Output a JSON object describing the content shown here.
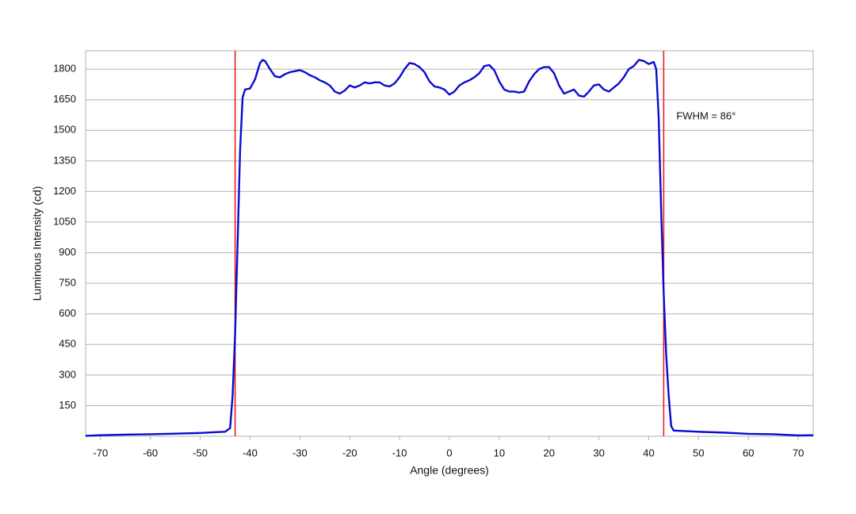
{
  "chart_data": {
    "type": "line",
    "x_label": "Angle (degrees)",
    "y_label": "Luminous Intensity (cd)",
    "annotation": "FWHM = 86°",
    "x": [
      -73,
      -70,
      -65,
      -60,
      -55,
      -50,
      -47,
      -45,
      -44,
      -43.5,
      -43,
      -42.5,
      -42,
      -41.5,
      -41,
      -40,
      -39,
      -38,
      -37.5,
      -37,
      -36,
      -35,
      -34,
      -33,
      -32,
      -31,
      -30,
      -29,
      -28,
      -27,
      -26,
      -25,
      -24,
      -23,
      -22,
      -21,
      -20,
      -19,
      -18,
      -17,
      -16,
      -15,
      -14,
      -13,
      -12,
      -11,
      -10,
      -9,
      -8,
      -7,
      -6,
      -5,
      -4,
      -3,
      -2,
      -1,
      0,
      1,
      2,
      3,
      4,
      5,
      6,
      7,
      8,
      9,
      10,
      11,
      12,
      13,
      14,
      15,
      16,
      17,
      18,
      19,
      20,
      21,
      22,
      23,
      24,
      25,
      26,
      27,
      28,
      29,
      30,
      31,
      32,
      33,
      34,
      35,
      36,
      37,
      38,
      39,
      40,
      41,
      41.5,
      42,
      42.5,
      43,
      43.5,
      44,
      44.5,
      45,
      50,
      55,
      60,
      65,
      70,
      73
    ],
    "series": [
      {
        "color": "#0a0ad0",
        "values": [
          2,
          5,
          8,
          10,
          13,
          16,
          20,
          22,
          40,
          200,
          500,
          950,
          1400,
          1660,
          1700,
          1705,
          1750,
          1830,
          1845,
          1840,
          1800,
          1765,
          1760,
          1775,
          1785,
          1790,
          1795,
          1785,
          1770,
          1760,
          1745,
          1735,
          1720,
          1690,
          1680,
          1695,
          1720,
          1710,
          1720,
          1735,
          1730,
          1735,
          1735,
          1720,
          1715,
          1730,
          1760,
          1800,
          1830,
          1825,
          1810,
          1785,
          1740,
          1715,
          1710,
          1700,
          1675,
          1690,
          1720,
          1735,
          1745,
          1760,
          1780,
          1815,
          1820,
          1795,
          1740,
          1700,
          1690,
          1690,
          1685,
          1690,
          1740,
          1775,
          1800,
          1810,
          1810,
          1780,
          1720,
          1680,
          1690,
          1700,
          1670,
          1665,
          1690,
          1720,
          1725,
          1700,
          1690,
          1710,
          1730,
          1760,
          1800,
          1815,
          1845,
          1840,
          1825,
          1835,
          1800,
          1560,
          1100,
          700,
          400,
          200,
          50,
          28,
          22,
          18,
          12,
          10,
          4,
          5
        ]
      }
    ],
    "vlines": [
      -43,
      43
    ],
    "vline_color": "#e02020",
    "xlim": [
      -73,
      73
    ],
    "xticks": [
      -70,
      -60,
      -50,
      -40,
      -30,
      -20,
      -10,
      0,
      10,
      20,
      30,
      40,
      50,
      60,
      70
    ],
    "ylim": [
      0,
      1890
    ],
    "yticks": [
      150,
      300,
      450,
      600,
      750,
      900,
      1050,
      1200,
      1350,
      1500,
      1650,
      1800
    ],
    "grid": true
  }
}
